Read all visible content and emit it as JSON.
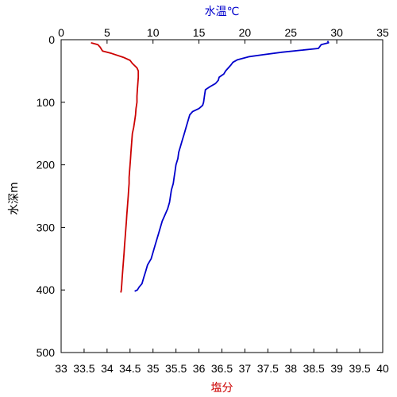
{
  "chart_data": {
    "type": "line",
    "axes": {
      "left": {
        "label": "水深m",
        "range": [
          0,
          500
        ],
        "inverted": true,
        "ticks": [
          "0",
          "100",
          "200",
          "300",
          "400",
          "500"
        ],
        "color": "#000000"
      },
      "top": {
        "label": "水温℃",
        "range": [
          0,
          35
        ],
        "ticks": [
          "0",
          "5",
          "10",
          "15",
          "20",
          "25",
          "30",
          "35"
        ],
        "color": "#0000cc"
      },
      "bottom": {
        "label": "塩分",
        "range": [
          33,
          40
        ],
        "ticks": [
          "33",
          "33.5",
          "34",
          "34.5",
          "35",
          "35.5",
          "36",
          "36.5",
          "37",
          "37.5",
          "38",
          "38.5",
          "39",
          "39.5",
          "40"
        ],
        "color": "#cc0000"
      }
    },
    "grid": false,
    "series": [
      {
        "axis": "top",
        "color": "#0000cc",
        "points": [
          [
            29.0,
            2
          ],
          [
            29.1,
            5
          ],
          [
            28.3,
            8
          ],
          [
            28.0,
            14
          ],
          [
            26.0,
            17
          ],
          [
            24.0,
            20
          ],
          [
            22.0,
            24
          ],
          [
            20.5,
            27
          ],
          [
            19.2,
            32
          ],
          [
            18.7,
            36
          ],
          [
            18.5,
            40
          ],
          [
            18.2,
            45
          ],
          [
            17.9,
            50
          ],
          [
            17.7,
            55
          ],
          [
            17.2,
            60
          ],
          [
            17.1,
            65
          ],
          [
            16.8,
            70
          ],
          [
            16.2,
            75
          ],
          [
            15.7,
            80
          ],
          [
            15.6,
            90
          ],
          [
            15.5,
            100
          ],
          [
            15.4,
            105
          ],
          [
            15.0,
            110
          ],
          [
            14.3,
            115
          ],
          [
            14.0,
            120
          ],
          [
            13.8,
            130
          ],
          [
            13.6,
            140
          ],
          [
            13.4,
            150
          ],
          [
            13.2,
            160
          ],
          [
            13.0,
            170
          ],
          [
            12.8,
            180
          ],
          [
            12.7,
            190
          ],
          [
            12.5,
            200
          ],
          [
            12.4,
            210
          ],
          [
            12.3,
            220
          ],
          [
            12.2,
            230
          ],
          [
            12.0,
            240
          ],
          [
            11.9,
            250
          ],
          [
            11.8,
            260
          ],
          [
            11.6,
            270
          ],
          [
            11.3,
            280
          ],
          [
            11.0,
            290
          ],
          [
            10.8,
            300
          ],
          [
            10.6,
            310
          ],
          [
            10.4,
            320
          ],
          [
            10.2,
            330
          ],
          [
            10.0,
            340
          ],
          [
            9.8,
            350
          ],
          [
            9.4,
            360
          ],
          [
            9.2,
            370
          ],
          [
            9.0,
            380
          ],
          [
            8.8,
            390
          ],
          [
            8.5,
            395
          ],
          [
            8.3,
            400
          ],
          [
            8.0,
            402
          ]
        ]
      },
      {
        "axis": "bottom",
        "color": "#cc0000",
        "points": [
          [
            33.65,
            5
          ],
          [
            33.8,
            8
          ],
          [
            33.85,
            12
          ],
          [
            33.9,
            18
          ],
          [
            34.1,
            22
          ],
          [
            34.35,
            28
          ],
          [
            34.5,
            33
          ],
          [
            34.55,
            38
          ],
          [
            34.65,
            45
          ],
          [
            34.68,
            50
          ],
          [
            34.68,
            60
          ],
          [
            34.67,
            70
          ],
          [
            34.66,
            80
          ],
          [
            34.65,
            90
          ],
          [
            34.65,
            100
          ],
          [
            34.63,
            110
          ],
          [
            34.62,
            120
          ],
          [
            34.6,
            130
          ],
          [
            34.58,
            140
          ],
          [
            34.55,
            150
          ],
          [
            34.54,
            160
          ],
          [
            34.53,
            170
          ],
          [
            34.52,
            180
          ],
          [
            34.51,
            190
          ],
          [
            34.5,
            200
          ],
          [
            34.49,
            210
          ],
          [
            34.48,
            220
          ],
          [
            34.48,
            230
          ],
          [
            34.47,
            240
          ],
          [
            34.46,
            250
          ],
          [
            34.45,
            260
          ],
          [
            34.44,
            270
          ],
          [
            34.43,
            280
          ],
          [
            34.42,
            290
          ],
          [
            34.41,
            300
          ],
          [
            34.4,
            310
          ],
          [
            34.39,
            320
          ],
          [
            34.38,
            330
          ],
          [
            34.37,
            340
          ],
          [
            34.36,
            350
          ],
          [
            34.35,
            360
          ],
          [
            34.34,
            370
          ],
          [
            34.33,
            380
          ],
          [
            34.32,
            390
          ],
          [
            34.31,
            400
          ],
          [
            34.3,
            404
          ]
        ]
      }
    ]
  }
}
